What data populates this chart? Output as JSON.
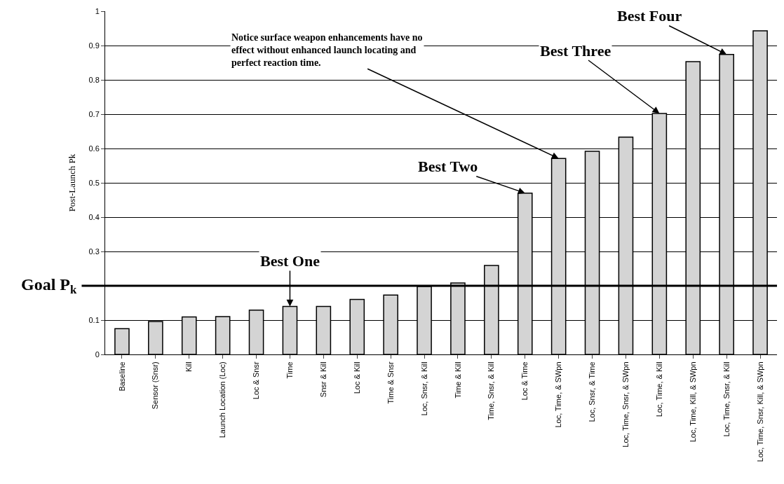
{
  "chart_data": {
    "type": "bar",
    "ylabel": "Post-Launch Pk",
    "categories": [
      "Baseline",
      "Sensor (Snsr)",
      "Kill",
      "Launch Location (Loc)",
      "Loc & Snsr",
      "Time",
      "Snsr & Kill",
      "Loc & Kill",
      "Time & Snsr",
      "Loc, Snsr, & Kill",
      "Time & Kill",
      "Time, Snsr, & Kill",
      "Loc & Time",
      "Loc, Time, & SWpn",
      "Loc, Snsr, & Time",
      "Loc, Time, Snsr, & SWpn",
      "Loc, Time, & Kill",
      "Loc, Time, Kill, & SWpn",
      "Loc, Time, Snsr, & Kill",
      "Loc, Time, Snsr, Kill, & SWpn"
    ],
    "values": [
      0.075,
      0.096,
      0.109,
      0.11,
      0.129,
      0.14,
      0.14,
      0.16,
      0.173,
      0.198,
      0.208,
      0.259,
      0.47,
      0.571,
      0.592,
      0.633,
      0.702,
      0.853,
      0.874,
      0.943
    ],
    "color": "#d4d4d4",
    "ylim": [
      0,
      1
    ],
    "yticks": [
      0,
      0.1,
      {
        "value": 0.2,
        "label": null
      },
      0.3,
      0.4,
      0.5,
      0.6,
      0.7,
      0.8,
      0.9,
      1
    ],
    "grid": "y",
    "ref_lines": [
      {
        "axis": "y",
        "value": 0.2,
        "label": "Goal P$_{k}$",
        "color": "#000000"
      }
    ],
    "annotations": [
      {
        "text": "Best One",
        "x": "Time",
        "y": 0.14
      },
      {
        "text": "Best Two",
        "x": "Loc & Time",
        "y": 0.47
      },
      {
        "text": "Notice surface weapon enhancements have no effect without enhanced launch locating and perfect reaction time.",
        "x": "Loc, Time, & SWpn",
        "y": 0.571
      },
      {
        "text": "Best Three",
        "x": "Loc, Time, & Kill",
        "y": 0.702
      },
      {
        "text": "Best Four",
        "x": "Loc, Time, Snsr, & Kill",
        "y": 0.874
      }
    ]
  }
}
